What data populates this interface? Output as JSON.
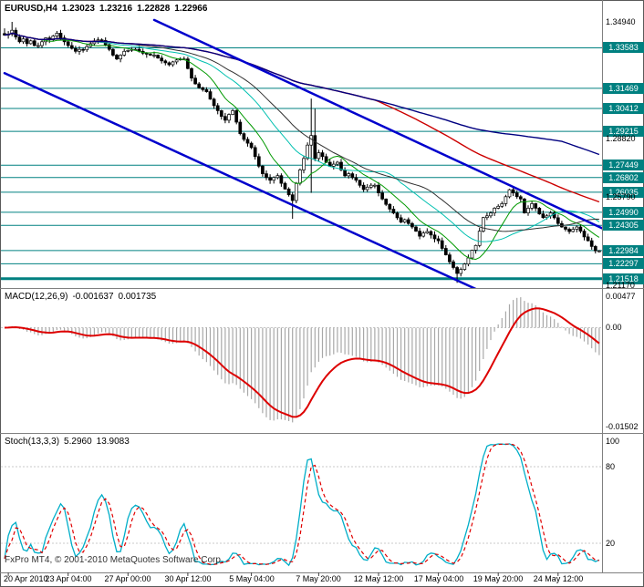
{
  "window": {
    "symbol_timeframe": "EURUSD,H4",
    "ohlc": {
      "open": "1.23023",
      "high": "1.23216",
      "low": "1.22828",
      "close": "1.22966"
    }
  },
  "watermark": "FxPro MT4, © 2001-2010 MetaQuotes Software Corp.",
  "colors": {
    "background": "#FFFFFF",
    "frame": "#5A5A5A",
    "divider": "#808080",
    "badge_bg": "#008080",
    "badge_text": "#FFFFFF"
  },
  "time_axis": {
    "labels": [
      {
        "bar": 1,
        "text": "20 Apr 2010"
      },
      {
        "bar": 17,
        "text": "23 Apr 04:00"
      },
      {
        "bar": 33,
        "text": "27 Apr 00:00"
      },
      {
        "bar": 49,
        "text": "30 Apr 12:00"
      },
      {
        "bar": 66,
        "text": "5 May 04:00"
      },
      {
        "bar": 84,
        "text": "7 May 20:00"
      },
      {
        "bar": 100,
        "text": "12 May 12:00"
      },
      {
        "bar": 116,
        "text": "17 May 04:00"
      },
      {
        "bar": 132,
        "text": "19 May 20:00"
      },
      {
        "bar": 148,
        "text": "24 May 12:00"
      }
    ]
  },
  "chart_data": [
    {
      "type": "candlestick",
      "title": "EURUSD,H4",
      "ohlc_display": {
        "open": "1.23023",
        "high": "1.23216",
        "low": "1.22828",
        "close": "1.22966"
      },
      "y_range": [
        1.2117,
        1.3494
      ],
      "candle_color": "#000000",
      "level_color": "#008080",
      "closes": [
        1.3425,
        1.343,
        1.345,
        1.3415,
        1.339,
        1.3405,
        1.338,
        1.3395,
        1.337,
        1.337,
        1.339,
        1.341,
        1.34,
        1.342,
        1.3435,
        1.341,
        1.339,
        1.337,
        1.3355,
        1.334,
        1.335,
        1.3348,
        1.3365,
        1.338,
        1.3395,
        1.34,
        1.3397,
        1.3375,
        1.335,
        1.332,
        1.33,
        1.332,
        1.334,
        1.3345,
        1.335,
        1.335,
        1.334,
        1.333,
        1.3325,
        1.332,
        1.332,
        1.3305,
        1.329,
        1.328,
        1.327,
        1.3285,
        1.3295,
        1.33,
        1.33,
        1.325,
        1.32,
        1.317,
        1.315,
        1.314,
        1.3129,
        1.309,
        1.3056,
        1.303,
        1.3,
        1.298,
        1.301,
        1.303,
        1.297,
        1.291,
        1.288,
        1.286,
        1.2837,
        1.279,
        1.274,
        1.27,
        1.268,
        1.2666,
        1.268,
        1.269,
        1.265,
        1.262,
        1.259,
        1.256,
        1.265,
        1.272,
        1.278,
        1.285,
        1.29,
        1.278,
        1.281,
        1.279,
        1.276,
        1.2739,
        1.275,
        1.276,
        1.272,
        1.2689,
        1.27,
        1.268,
        1.2666,
        1.264,
        1.2617,
        1.263,
        1.264,
        1.264,
        1.26,
        1.2568,
        1.254,
        1.2515,
        1.2495,
        1.247,
        1.2447,
        1.246,
        1.244,
        1.2422,
        1.24,
        1.2374,
        1.239,
        1.2398,
        1.238,
        1.236,
        1.235,
        1.231,
        1.2276,
        1.224,
        1.221,
        1.2179,
        1.22,
        1.2228,
        1.226,
        1.23,
        1.2325,
        1.24,
        1.2471,
        1.248,
        1.2495,
        1.252,
        1.253,
        1.2544,
        1.258,
        1.2617,
        1.26,
        1.258,
        1.2568,
        1.2495,
        1.252,
        1.2544,
        1.252,
        1.249,
        1.2471,
        1.248,
        1.2495,
        1.247,
        1.244,
        1.2422,
        1.241,
        1.2398,
        1.241,
        1.2422,
        1.24,
        1.237,
        1.235,
        1.232,
        1.2297,
        1.2297
      ],
      "wick_overrides": {
        "0": {
          "high": 1.346
        },
        "2": {
          "high": 1.3494
        },
        "77": {
          "low": 1.2465
        },
        "82": {
          "high": 1.3093,
          "low": 1.26
        },
        "83": {
          "high": 1.304
        },
        "121": {
          "low": 1.213
        }
      },
      "moving_averages": [
        {
          "period": 10,
          "color": "#009900",
          "width": 1
        },
        {
          "period": 24,
          "color": "#00C0B0",
          "width": 1
        },
        {
          "period": 34,
          "color": "#303030",
          "width": 1
        },
        {
          "period": 100,
          "color": "#CC0000",
          "width": 1.4
        },
        {
          "period": 150,
          "color": "#000080",
          "width": 1.4
        }
      ],
      "trendlines": [
        {
          "bar1": 40,
          "price1": 1.3504,
          "bar2": 162,
          "price2": 1.2395,
          "color": "#0000CC",
          "width": 2.5
        },
        {
          "bar1": 0,
          "price1": 1.3226,
          "bar2": 128,
          "price2": 1.208,
          "color": "#0000CC",
          "width": 2.5
        }
      ],
      "levels": [
        {
          "price": 1.33583,
          "label": "1.33583",
          "width": 1
        },
        {
          "price": 1.31469,
          "label": "1.31469",
          "width": 1
        },
        {
          "price": 1.30412,
          "label": "1.30412",
          "width": 1
        },
        {
          "price": 1.29215,
          "label": "1.29215",
          "width": 1
        },
        {
          "price": 1.27449,
          "label": "1.27449",
          "width": 1
        },
        {
          "price": 1.26802,
          "label": "1.26802",
          "width": 1
        },
        {
          "price": 1.26035,
          "label": "1.26035",
          "width": 1
        },
        {
          "price": 1.2499,
          "label": "1.24990",
          "width": 1
        },
        {
          "price": 1.24305,
          "label": "1.24305",
          "width": 1
        },
        {
          "price": 1.22984,
          "label": "1.22984",
          "width": 1
        },
        {
          "price": 1.22297,
          "label": "1.22297",
          "width": 1
        },
        {
          "price": 1.21518,
          "label": "1.21518",
          "width": 3
        }
      ],
      "scale_plain_labels": [
        {
          "price": 1.3494,
          "label": "1.34940"
        },
        {
          "price": 1.2882,
          "label": "1.28820"
        },
        {
          "price": 1.2579,
          "label": "1.25790"
        },
        {
          "price": 1.2117,
          "label": "1.21170"
        }
      ]
    },
    {
      "type": "macd",
      "label": "MACD(12,26,9)",
      "value_main": "-0.001637",
      "value_signal": "0.001735",
      "params": {
        "fast": 12,
        "slow": 26,
        "signal": 9
      },
      "y_range": [
        -0.01502,
        0.00477
      ],
      "histogram_color": "#A8A8A8",
      "signal_color": "#DD0000",
      "scale_labels": [
        {
          "value": 0.00477,
          "label": "0.00477"
        },
        {
          "value": 0,
          "label": "0.00"
        },
        {
          "value": -0.01502,
          "label": "-0.01502"
        }
      ]
    },
    {
      "type": "stochastic",
      "label": "Stoch(13,3,3)",
      "value_main": "5.2960",
      "value_signal": "13.9083",
      "params": {
        "k": 13,
        "d": 3,
        "slowing": 3
      },
      "y_range": [
        0,
        100
      ],
      "levels": [
        80,
        20
      ],
      "main_color": "#00AEC8",
      "signal_color": "#E00000",
      "scale_labels": [
        {
          "value": 100,
          "label": "100"
        },
        {
          "value": 80,
          "label": "80"
        },
        {
          "value": 20,
          "label": "20"
        }
      ]
    }
  ]
}
